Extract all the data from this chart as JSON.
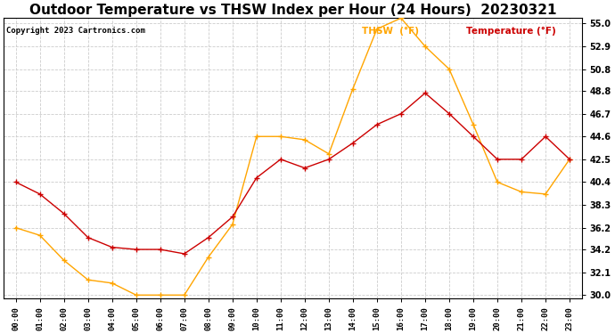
{
  "title": "Outdoor Temperature vs THSW Index per Hour (24 Hours)  20230321",
  "copyright": "Copyright 2023 Cartronics.com",
  "hours": [
    "00:00",
    "01:00",
    "02:00",
    "03:00",
    "04:00",
    "05:00",
    "06:00",
    "07:00",
    "08:00",
    "09:00",
    "10:00",
    "11:00",
    "12:00",
    "13:00",
    "14:00",
    "15:00",
    "16:00",
    "17:00",
    "18:00",
    "19:00",
    "20:00",
    "21:00",
    "22:00",
    "23:00"
  ],
  "thsw": [
    36.2,
    35.5,
    33.2,
    31.4,
    31.1,
    30.0,
    30.0,
    30.0,
    33.5,
    36.5,
    44.6,
    44.6,
    44.3,
    43.0,
    49.0,
    54.5,
    55.5,
    52.9,
    50.8,
    45.7,
    40.4,
    39.5,
    39.3,
    42.5
  ],
  "temperature": [
    40.4,
    39.3,
    37.5,
    35.3,
    34.4,
    34.2,
    34.2,
    33.8,
    35.3,
    37.2,
    40.8,
    42.5,
    41.7,
    42.5,
    44.0,
    45.7,
    46.7,
    48.6,
    46.7,
    44.6,
    42.5,
    42.5,
    44.6,
    42.5
  ],
  "thsw_color": "#FFA500",
  "temp_color": "#CC0000",
  "ylim_min": 30.0,
  "ylim_max": 55.0,
  "yticks": [
    30.0,
    32.1,
    34.2,
    36.2,
    38.3,
    40.4,
    42.5,
    44.6,
    46.7,
    48.8,
    50.8,
    52.9,
    55.0
  ],
  "background_color": "#ffffff",
  "grid_color": "#cccccc",
  "title_fontsize": 11,
  "legend_thsw": "THSW  (°F)",
  "legend_temp": "Temperature (°F)"
}
